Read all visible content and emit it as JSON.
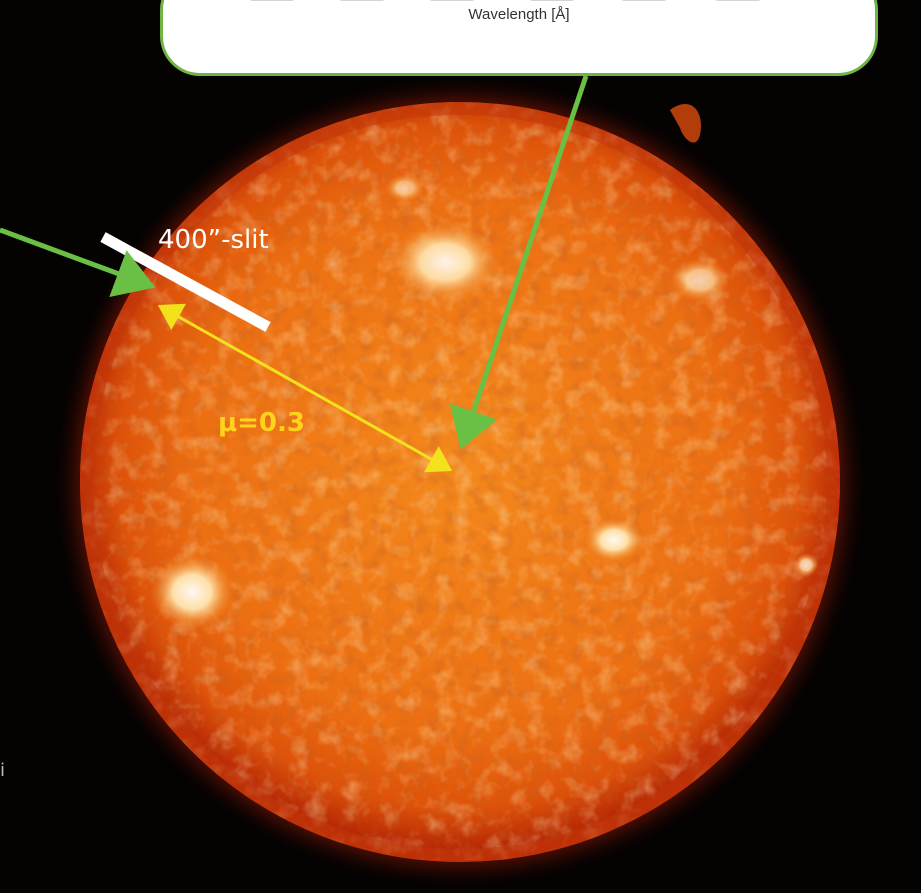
{
  "inset_plot": {
    "xlabel": "Wavelength [Å]"
  },
  "annotations": {
    "slit_label": "400”-slit",
    "mu_label": "μ=0.3",
    "left_edge_fragment": "i"
  },
  "colors": {
    "callout_border": "#70b443",
    "arrow_green": "#6abf45",
    "arrow_yellow": "#f2e21b",
    "slit_bar": "#ffffff",
    "sun_core": "#f07a14",
    "sun_limb": "#b82a06",
    "background": "#050202"
  }
}
